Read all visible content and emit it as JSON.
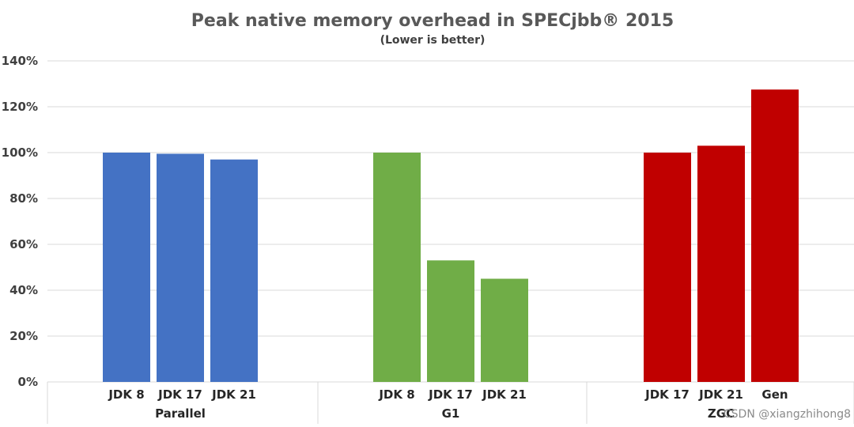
{
  "chart_data": {
    "type": "bar",
    "title": "Peak native memory overhead in SPECjbb® 2015",
    "subtitle": "(Lower is better)",
    "xlabel": "",
    "ylabel": "",
    "ylim": [
      0,
      140
    ],
    "y_ticks": [
      "0%",
      "20%",
      "40%",
      "60%",
      "80%",
      "100%",
      "120%",
      "140%"
    ],
    "y_tick_values": [
      0,
      20,
      40,
      60,
      80,
      100,
      120,
      140
    ],
    "grid": true,
    "legend": "none",
    "groups": [
      {
        "name": "Parallel",
        "color": "#4472c4",
        "bars": [
          {
            "label": "JDK 8",
            "value": 100
          },
          {
            "label": "JDK 17",
            "value": 99.5
          },
          {
            "label": "JDK 21",
            "value": 97
          }
        ]
      },
      {
        "name": "G1",
        "color": "#70ad47",
        "bars": [
          {
            "label": "JDK 8",
            "value": 100
          },
          {
            "label": "JDK 17",
            "value": 53
          },
          {
            "label": "JDK 21",
            "value": 45
          }
        ]
      },
      {
        "name": "ZGC",
        "color": "#c00000",
        "bars": [
          {
            "label": "JDK 17",
            "value": 100
          },
          {
            "label": "JDK 21",
            "value": 103
          },
          {
            "label": "Gen",
            "value": 127.5
          }
        ]
      }
    ]
  },
  "credit": "CSDN @xiangzhihong8"
}
